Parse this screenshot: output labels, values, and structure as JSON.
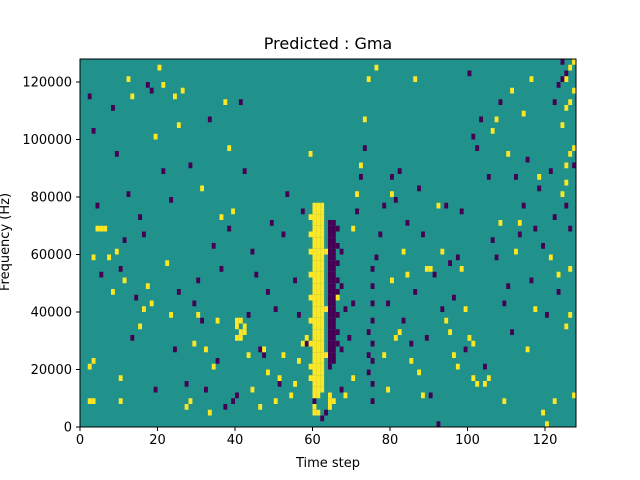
{
  "chart_data": {
    "type": "heatmap",
    "title": "Predicted : Gma",
    "xlabel": "Time step",
    "ylabel": "Frequency (Hz)",
    "xlim": [
      0,
      128
    ],
    "ylim": [
      0,
      128000
    ],
    "x_ticks": [
      0,
      20,
      40,
      60,
      80,
      100,
      120
    ],
    "y_ticks": [
      0,
      20000,
      40000,
      60000,
      80000,
      100000,
      120000
    ],
    "grid": false,
    "legend": "none",
    "colors": {
      "background": "#21918c",
      "high": "#fde725",
      "low": "#440154"
    },
    "cell_size": {
      "time_step": 1,
      "frequency_hz": 2000
    },
    "high_cells": [
      [
        2,
        4
      ],
      [
        3,
        4
      ],
      [
        2,
        10
      ],
      [
        3,
        11
      ],
      [
        3,
        29
      ],
      [
        4,
        34
      ],
      [
        5,
        34
      ],
      [
        6,
        34
      ],
      [
        7,
        29
      ],
      [
        8,
        23
      ],
      [
        9,
        30
      ],
      [
        10,
        4
      ],
      [
        10,
        8
      ],
      [
        11,
        25
      ],
      [
        12,
        60
      ],
      [
        13,
        57
      ],
      [
        15,
        17
      ],
      [
        16,
        20
      ],
      [
        17,
        24
      ],
      [
        18,
        21
      ],
      [
        19,
        50
      ],
      [
        20,
        62
      ],
      [
        21,
        59
      ],
      [
        22,
        28
      ],
      [
        23,
        19
      ],
      [
        24,
        57
      ],
      [
        25,
        52
      ],
      [
        26,
        58
      ],
      [
        27,
        3
      ],
      [
        28,
        4
      ],
      [
        29,
        14
      ],
      [
        30,
        19
      ],
      [
        31,
        41
      ],
      [
        32,
        13
      ],
      [
        33,
        2
      ],
      [
        34,
        10
      ],
      [
        35,
        18
      ],
      [
        36,
        36
      ],
      [
        37,
        56
      ],
      [
        38,
        48
      ],
      [
        39,
        37
      ],
      [
        40,
        17
      ],
      [
        40,
        15
      ],
      [
        41,
        16
      ],
      [
        41,
        15
      ],
      [
        42,
        17
      ],
      [
        42,
        16
      ],
      [
        40,
        18
      ],
      [
        41,
        18
      ],
      [
        43,
        12
      ],
      [
        44,
        6
      ],
      [
        46,
        3
      ],
      [
        47,
        13
      ],
      [
        48,
        9
      ],
      [
        50,
        4
      ],
      [
        51,
        8
      ],
      [
        52,
        12
      ],
      [
        54,
        5
      ],
      [
        55,
        7
      ],
      [
        56,
        11
      ],
      [
        57,
        14
      ],
      [
        58,
        15
      ],
      [
        59,
        47
      ],
      [
        60,
        2
      ],
      [
        60,
        3
      ],
      [
        61,
        2
      ],
      [
        60,
        5
      ],
      [
        60,
        6
      ],
      [
        60,
        7
      ],
      [
        60,
        8
      ],
      [
        60,
        9
      ],
      [
        60,
        10
      ],
      [
        60,
        11
      ],
      [
        60,
        12
      ],
      [
        60,
        13
      ],
      [
        60,
        14
      ],
      [
        60,
        15
      ],
      [
        60,
        16
      ],
      [
        60,
        17
      ],
      [
        60,
        18
      ],
      [
        60,
        19
      ],
      [
        60,
        20
      ],
      [
        60,
        21
      ],
      [
        60,
        22
      ],
      [
        60,
        23
      ],
      [
        60,
        24
      ],
      [
        60,
        25
      ],
      [
        60,
        26
      ],
      [
        60,
        27
      ],
      [
        60,
        28
      ],
      [
        60,
        29
      ],
      [
        60,
        30
      ],
      [
        60,
        31
      ],
      [
        60,
        32
      ],
      [
        60,
        33
      ],
      [
        60,
        34
      ],
      [
        60,
        35
      ],
      [
        60,
        36
      ],
      [
        60,
        37
      ],
      [
        60,
        38
      ],
      [
        61,
        5
      ],
      [
        61,
        6
      ],
      [
        61,
        7
      ],
      [
        61,
        8
      ],
      [
        61,
        9
      ],
      [
        61,
        10
      ],
      [
        61,
        11
      ],
      [
        61,
        12
      ],
      [
        61,
        13
      ],
      [
        61,
        14
      ],
      [
        61,
        15
      ],
      [
        61,
        16
      ],
      [
        61,
        17
      ],
      [
        61,
        18
      ],
      [
        61,
        19
      ],
      [
        61,
        20
      ],
      [
        61,
        21
      ],
      [
        61,
        22
      ],
      [
        61,
        23
      ],
      [
        61,
        24
      ],
      [
        61,
        25
      ],
      [
        61,
        26
      ],
      [
        61,
        27
      ],
      [
        61,
        28
      ],
      [
        61,
        29
      ],
      [
        61,
        30
      ],
      [
        61,
        31
      ],
      [
        61,
        32
      ],
      [
        61,
        33
      ],
      [
        61,
        34
      ],
      [
        61,
        35
      ],
      [
        61,
        36
      ],
      [
        61,
        37
      ],
      [
        61,
        38
      ],
      [
        62,
        6
      ],
      [
        62,
        7
      ],
      [
        62,
        8
      ],
      [
        62,
        9
      ],
      [
        62,
        10
      ],
      [
        62,
        11
      ],
      [
        62,
        12
      ],
      [
        62,
        13
      ],
      [
        62,
        14
      ],
      [
        62,
        15
      ],
      [
        62,
        16
      ],
      [
        62,
        17
      ],
      [
        62,
        18
      ],
      [
        62,
        19
      ],
      [
        62,
        20
      ],
      [
        62,
        21
      ],
      [
        62,
        22
      ],
      [
        62,
        23
      ],
      [
        62,
        24
      ],
      [
        62,
        25
      ],
      [
        62,
        26
      ],
      [
        62,
        27
      ],
      [
        62,
        28
      ],
      [
        62,
        29
      ],
      [
        62,
        30
      ],
      [
        62,
        31
      ],
      [
        62,
        32
      ],
      [
        62,
        33
      ],
      [
        62,
        34
      ],
      [
        62,
        35
      ],
      [
        62,
        36
      ],
      [
        62,
        37
      ],
      [
        62,
        38
      ],
      [
        59,
        8
      ],
      [
        59,
        10
      ],
      [
        59,
        14
      ],
      [
        59,
        18
      ],
      [
        59,
        22
      ],
      [
        59,
        26
      ],
      [
        59,
        30
      ],
      [
        59,
        33
      ],
      [
        59,
        36
      ],
      [
        63,
        12
      ],
      [
        63,
        20
      ],
      [
        63,
        30
      ],
      [
        64,
        3
      ],
      [
        64,
        4
      ],
      [
        64,
        5
      ],
      [
        65,
        4
      ],
      [
        66,
        22
      ],
      [
        68,
        5
      ],
      [
        70,
        8
      ],
      [
        70,
        34
      ],
      [
        71,
        40
      ],
      [
        72,
        45
      ],
      [
        73,
        53
      ],
      [
        74,
        60
      ],
      [
        75,
        64
      ],
      [
        76,
        62
      ],
      [
        78,
        12
      ],
      [
        79,
        6
      ],
      [
        80,
        40
      ],
      [
        80,
        25
      ],
      [
        81,
        15
      ],
      [
        82,
        16
      ],
      [
        83,
        30
      ],
      [
        84,
        26
      ],
      [
        85,
        11
      ],
      [
        86,
        60
      ],
      [
        87,
        9
      ],
      [
        88,
        5
      ],
      [
        89,
        27
      ],
      [
        90,
        27
      ],
      [
        92,
        38
      ],
      [
        93,
        30
      ],
      [
        94,
        18
      ],
      [
        95,
        16
      ],
      [
        96,
        12
      ],
      [
        97,
        10
      ],
      [
        98,
        27
      ],
      [
        99,
        20
      ],
      [
        100,
        15
      ],
      [
        101,
        14
      ],
      [
        101,
        8
      ],
      [
        102,
        7
      ],
      [
        103,
        64
      ],
      [
        104,
        7
      ],
      [
        105,
        8
      ],
      [
        106,
        51
      ],
      [
        107,
        53
      ],
      [
        108,
        35
      ],
      [
        109,
        4
      ],
      [
        110,
        47
      ],
      [
        111,
        58
      ],
      [
        112,
        30
      ],
      [
        113,
        35
      ],
      [
        114,
        54
      ],
      [
        115,
        13
      ],
      [
        116,
        60
      ],
      [
        117,
        20
      ],
      [
        118,
        43
      ],
      [
        119,
        2
      ],
      [
        120,
        0
      ],
      [
        121,
        29
      ],
      [
        122,
        4
      ],
      [
        123,
        26
      ],
      [
        124,
        52
      ],
      [
        125,
        17
      ],
      [
        126,
        19
      ],
      [
        126,
        27
      ],
      [
        127,
        5
      ],
      [
        125,
        42
      ],
      [
        124,
        40
      ],
      [
        125,
        45
      ],
      [
        126,
        47
      ],
      [
        127,
        48
      ],
      [
        125,
        55
      ],
      [
        126,
        56
      ],
      [
        127,
        58
      ],
      [
        125,
        60
      ],
      [
        126,
        62
      ],
      [
        127,
        63
      ]
    ],
    "low_cells": [
      [
        2,
        57
      ],
      [
        3,
        51
      ],
      [
        4,
        38
      ],
      [
        5,
        26
      ],
      [
        8,
        55
      ],
      [
        9,
        47
      ],
      [
        10,
        27
      ],
      [
        11,
        32
      ],
      [
        12,
        40
      ],
      [
        13,
        15
      ],
      [
        14,
        22
      ],
      [
        15,
        36
      ],
      [
        16,
        33
      ],
      [
        17,
        59
      ],
      [
        18,
        58
      ],
      [
        19,
        6
      ],
      [
        21,
        44
      ],
      [
        23,
        39
      ],
      [
        24,
        13
      ],
      [
        25,
        23
      ],
      [
        27,
        7
      ],
      [
        28,
        45
      ],
      [
        29,
        21
      ],
      [
        30,
        25
      ],
      [
        31,
        18
      ],
      [
        32,
        6
      ],
      [
        33,
        53
      ],
      [
        34,
        31
      ],
      [
        35,
        11
      ],
      [
        36,
        27
      ],
      [
        37,
        3
      ],
      [
        38,
        34
      ],
      [
        39,
        4
      ],
      [
        40,
        5
      ],
      [
        41,
        56
      ],
      [
        42,
        44
      ],
      [
        43,
        19
      ],
      [
        44,
        30
      ],
      [
        45,
        26
      ],
      [
        46,
        13
      ],
      [
        47,
        12
      ],
      [
        48,
        23
      ],
      [
        49,
        35
      ],
      [
        50,
        20
      ],
      [
        51,
        7
      ],
      [
        52,
        33
      ],
      [
        53,
        40
      ],
      [
        55,
        25
      ],
      [
        56,
        19
      ],
      [
        57,
        37
      ],
      [
        58,
        14
      ],
      [
        60,
        4
      ],
      [
        62,
        1
      ],
      [
        63,
        2
      ],
      [
        64,
        10
      ],
      [
        64,
        11
      ],
      [
        64,
        12
      ],
      [
        64,
        13
      ],
      [
        64,
        14
      ],
      [
        64,
        15
      ],
      [
        64,
        16
      ],
      [
        64,
        17
      ],
      [
        64,
        18
      ],
      [
        64,
        19
      ],
      [
        64,
        20
      ],
      [
        64,
        21
      ],
      [
        64,
        22
      ],
      [
        64,
        23
      ],
      [
        64,
        24
      ],
      [
        64,
        25
      ],
      [
        64,
        26
      ],
      [
        64,
        27
      ],
      [
        64,
        28
      ],
      [
        64,
        29
      ],
      [
        64,
        30
      ],
      [
        64,
        31
      ],
      [
        64,
        32
      ],
      [
        64,
        33
      ],
      [
        64,
        34
      ],
      [
        64,
        35
      ],
      [
        65,
        11
      ],
      [
        65,
        12
      ],
      [
        65,
        13
      ],
      [
        65,
        14
      ],
      [
        65,
        15
      ],
      [
        65,
        16
      ],
      [
        65,
        17
      ],
      [
        65,
        18
      ],
      [
        65,
        19
      ],
      [
        65,
        20
      ],
      [
        65,
        21
      ],
      [
        65,
        22
      ],
      [
        65,
        23
      ],
      [
        65,
        24
      ],
      [
        65,
        25
      ],
      [
        65,
        26
      ],
      [
        65,
        27
      ],
      [
        65,
        28
      ],
      [
        65,
        29
      ],
      [
        65,
        30
      ],
      [
        65,
        31
      ],
      [
        65,
        32
      ],
      [
        65,
        33
      ],
      [
        65,
        34
      ],
      [
        65,
        35
      ],
      [
        66,
        14
      ],
      [
        66,
        16
      ],
      [
        66,
        19
      ],
      [
        66,
        23
      ],
      [
        66,
        25
      ],
      [
        66,
        28
      ],
      [
        66,
        31
      ],
      [
        66,
        34
      ],
      [
        67,
        6
      ],
      [
        67,
        13
      ],
      [
        67,
        24
      ],
      [
        67,
        30
      ],
      [
        68,
        20
      ],
      [
        69,
        15
      ],
      [
        70,
        21
      ],
      [
        71,
        37
      ],
      [
        72,
        43
      ],
      [
        73,
        48
      ],
      [
        74,
        9
      ],
      [
        74,
        12
      ],
      [
        74,
        16
      ],
      [
        75,
        4
      ],
      [
        75,
        7
      ],
      [
        75,
        11
      ],
      [
        75,
        14
      ],
      [
        75,
        18
      ],
      [
        75,
        21
      ],
      [
        75,
        24
      ],
      [
        75,
        27
      ],
      [
        76,
        29
      ],
      [
        77,
        33
      ],
      [
        78,
        38
      ],
      [
        79,
        21
      ],
      [
        80,
        43
      ],
      [
        81,
        39
      ],
      [
        82,
        44
      ],
      [
        83,
        18
      ],
      [
        84,
        35
      ],
      [
        85,
        14
      ],
      [
        86,
        23
      ],
      [
        87,
        41
      ],
      [
        88,
        33
      ],
      [
        89,
        15
      ],
      [
        90,
        5
      ],
      [
        91,
        26
      ],
      [
        92,
        0
      ],
      [
        93,
        20
      ],
      [
        94,
        38
      ],
      [
        95,
        28
      ],
      [
        96,
        22
      ],
      [
        97,
        29
      ],
      [
        98,
        37
      ],
      [
        99,
        13
      ],
      [
        100,
        61
      ],
      [
        101,
        50
      ],
      [
        102,
        48
      ],
      [
        103,
        53
      ],
      [
        104,
        10
      ],
      [
        105,
        43
      ],
      [
        106,
        32
      ],
      [
        107,
        29
      ],
      [
        108,
        56
      ],
      [
        109,
        21
      ],
      [
        110,
        24
      ],
      [
        111,
        16
      ],
      [
        112,
        43
      ],
      [
        113,
        33
      ],
      [
        114,
        38
      ],
      [
        115,
        46
      ],
      [
        116,
        25
      ],
      [
        117,
        34
      ],
      [
        118,
        41
      ],
      [
        119,
        31
      ],
      [
        120,
        19
      ],
      [
        121,
        44
      ],
      [
        122,
        36
      ],
      [
        123,
        23
      ],
      [
        124,
        63
      ],
      [
        125,
        38
      ],
      [
        126,
        34
      ],
      [
        127,
        45
      ],
      [
        122,
        56
      ],
      [
        123,
        59
      ],
      [
        124,
        60
      ],
      [
        125,
        61
      ]
    ]
  }
}
